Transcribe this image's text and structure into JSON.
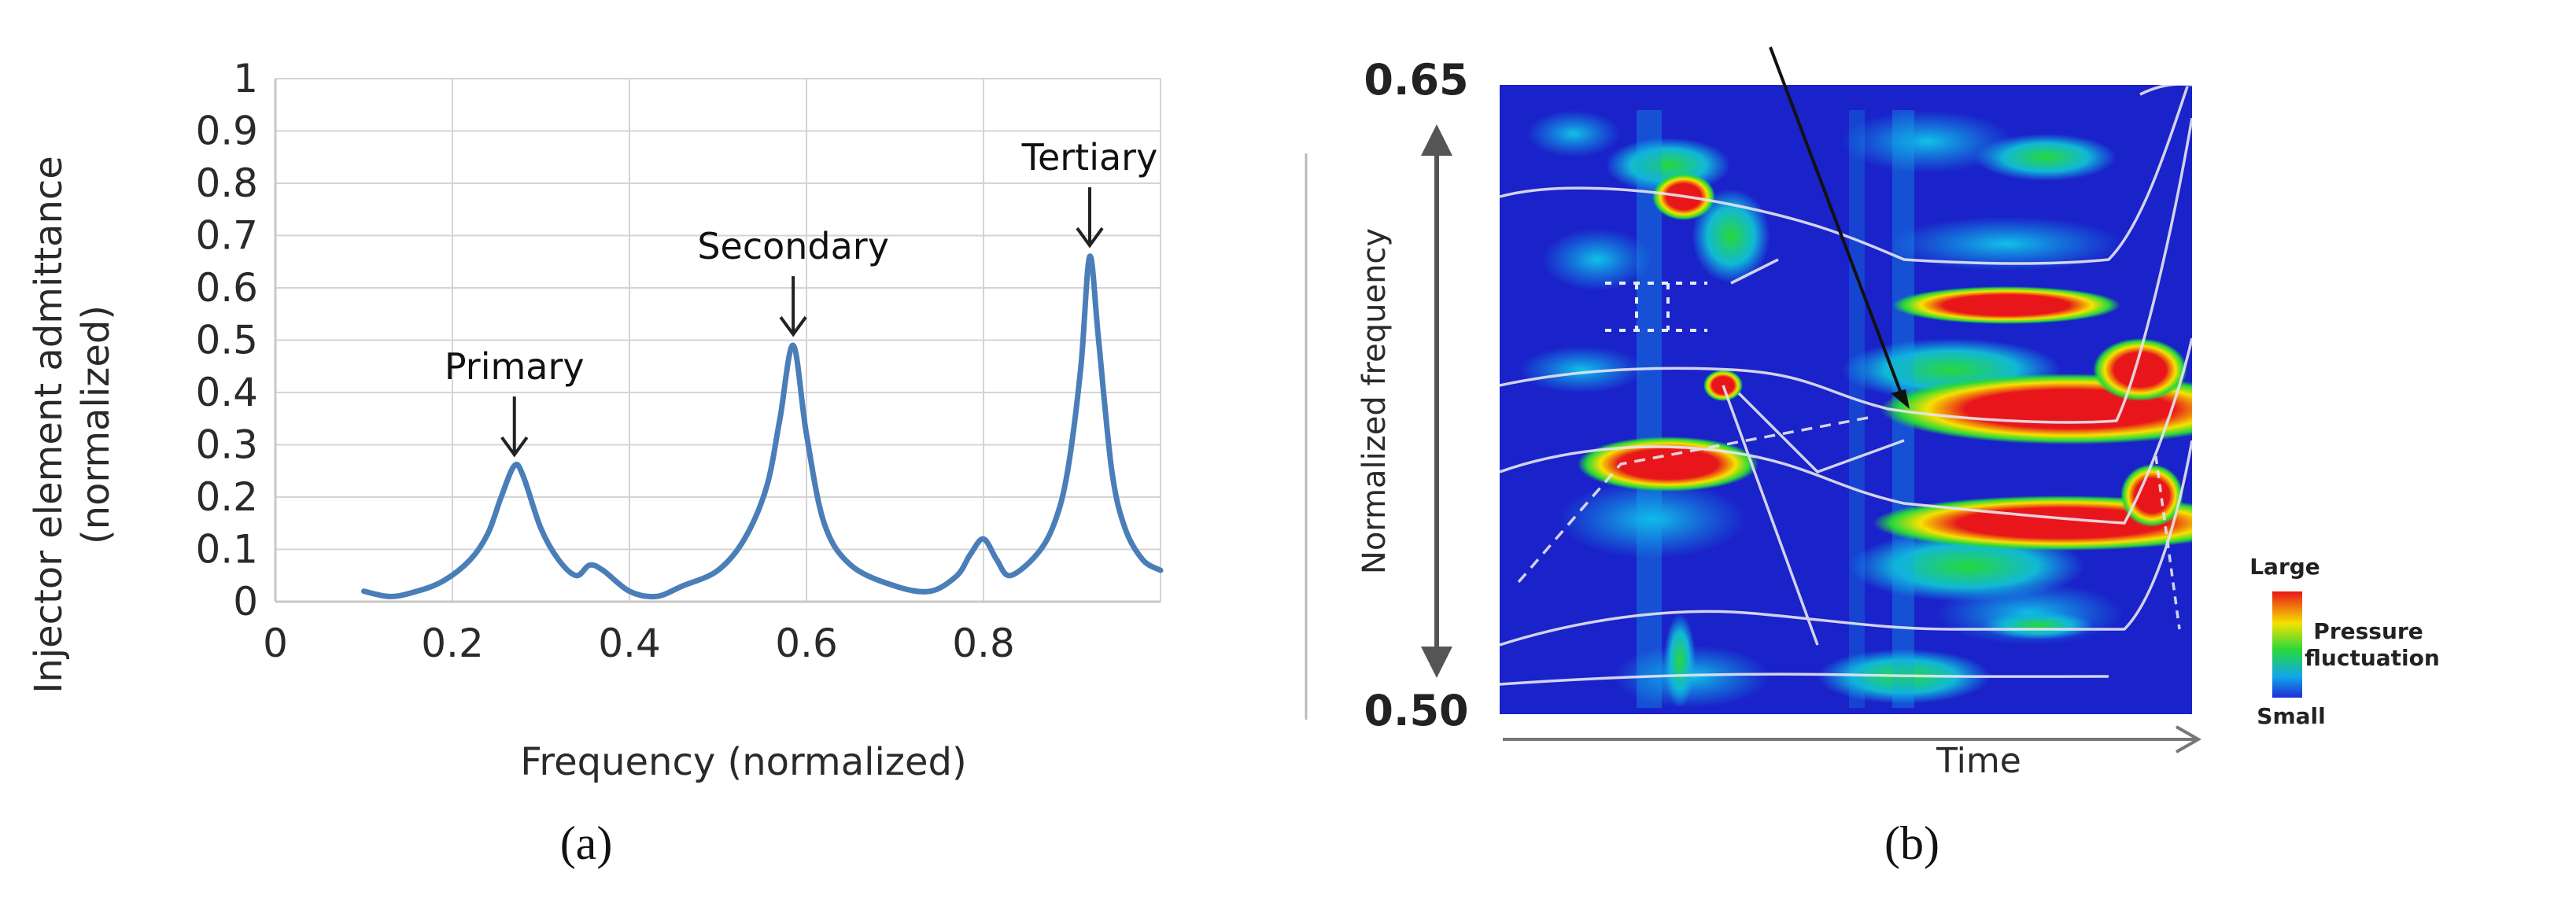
{
  "chart_data": [
    {
      "type": "line",
      "xlabel": "Frequency (normalized)",
      "ylabel": "Injector element admittance (normalized)",
      "ylabel_lines": [
        "Injector element admittance",
        "(normalized)"
      ],
      "xlim": [
        0,
        1
      ],
      "ylim": [
        0,
        1
      ],
      "x_ticks": [
        0,
        0.2,
        0.4,
        0.6,
        0.8
      ],
      "y_ticks": [
        0,
        0.1,
        0.2,
        0.3,
        0.4,
        0.5,
        0.6,
        0.7,
        0.8,
        0.9,
        1
      ],
      "x_tick_labels": [
        "0",
        "0.2",
        "0.4",
        "0.6",
        "0.8"
      ],
      "y_tick_labels": [
        "0",
        "0.1",
        "0.2",
        "0.3",
        "0.4",
        "0.5",
        "0.6",
        "0.7",
        "0.8",
        "0.9",
        "1"
      ],
      "grid": true,
      "line_color": "#4a7eb8",
      "x": [
        0.1,
        0.13,
        0.16,
        0.19,
        0.22,
        0.24,
        0.255,
        0.27,
        0.28,
        0.3,
        0.32,
        0.34,
        0.355,
        0.37,
        0.4,
        0.43,
        0.46,
        0.5,
        0.53,
        0.555,
        0.57,
        0.585,
        0.6,
        0.62,
        0.65,
        0.7,
        0.74,
        0.77,
        0.785,
        0.8,
        0.815,
        0.83,
        0.86,
        0.88,
        0.895,
        0.91,
        0.92,
        0.93,
        0.945,
        0.96,
        0.98,
        1.0
      ],
      "y": [
        0.02,
        0.01,
        0.02,
        0.04,
        0.08,
        0.13,
        0.2,
        0.26,
        0.24,
        0.14,
        0.08,
        0.05,
        0.07,
        0.06,
        0.02,
        0.01,
        0.03,
        0.06,
        0.12,
        0.22,
        0.35,
        0.49,
        0.32,
        0.15,
        0.07,
        0.03,
        0.02,
        0.05,
        0.09,
        0.12,
        0.08,
        0.05,
        0.09,
        0.15,
        0.25,
        0.45,
        0.66,
        0.5,
        0.25,
        0.14,
        0.08,
        0.06
      ],
      "annotations": [
        {
          "text": "Primary",
          "x": 0.27,
          "y": 0.26
        },
        {
          "text": "Secondary",
          "x": 0.585,
          "y": 0.49
        },
        {
          "text": "Tertiary",
          "x": 0.92,
          "y": 0.66
        }
      ]
    },
    {
      "type": "heatmap",
      "xlabel": "Time",
      "ylabel": "Normalized frequency",
      "ylim": [
        0.5,
        0.65
      ],
      "y_tick_labels": [
        "0.65",
        "0.50"
      ],
      "legend": {
        "title": "Pressure fluctuation",
        "title_lines": [
          "Pressure",
          "fluctuation"
        ],
        "high": "Large",
        "low": "Small",
        "colors": [
          "#e8161a",
          "#f6e200",
          "#27d83b",
          "#11a8ea",
          "#1d2fd8"
        ]
      },
      "background_color": "#1a22c9"
    }
  ],
  "captions": [
    "(a)",
    "(b)"
  ]
}
